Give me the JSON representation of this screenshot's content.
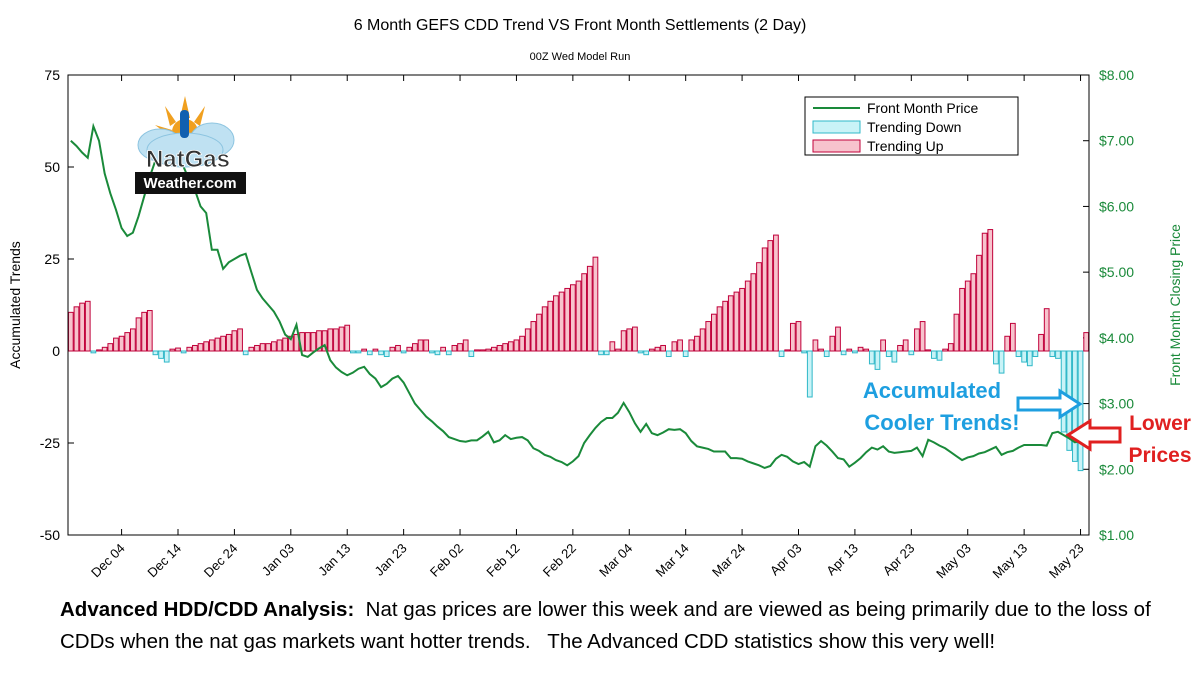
{
  "chart_data": {
    "type": "bar",
    "title": "6 Month GEFS CDD Trend VS Front Month Settlements (2 Day)",
    "subtitle": "00Z Wed Model Run",
    "y_label": "Accumulated Trends",
    "y2_label": "Front Month Closing Price",
    "logo": [
      "NatGas",
      "Weather.com"
    ],
    "annotations": [
      "Accumulated",
      "Cooler Trends!",
      "Lower",
      "Prices"
    ],
    "legend": "upper right",
    "ylim": [
      -50,
      75
    ],
    "yticks": [
      -50,
      -25,
      0,
      25,
      50,
      75
    ],
    "y2lim": [
      1,
      8
    ],
    "y2ticks": [
      {
        "value": 1,
        "label": "$1.00"
      },
      {
        "value": 2,
        "label": "$2.00"
      },
      {
        "value": 3,
        "label": "$3.00"
      },
      {
        "value": 4,
        "label": "$4.00"
      },
      {
        "value": 5,
        "label": "$5.00"
      },
      {
        "value": 6,
        "label": "$6.00"
      },
      {
        "value": 7,
        "label": "$7.00"
      },
      {
        "value": 8,
        "label": "$8.00"
      }
    ],
    "categories": [
      null,
      null,
      null,
      null,
      null,
      null,
      null,
      null,
      null,
      "Dec 04",
      null,
      null,
      null,
      null,
      null,
      null,
      null,
      null,
      null,
      "Dec 14",
      null,
      null,
      null,
      null,
      null,
      null,
      null,
      null,
      null,
      "Dec 24",
      null,
      null,
      null,
      null,
      null,
      null,
      null,
      null,
      null,
      "Jan 03",
      null,
      null,
      null,
      null,
      null,
      null,
      null,
      null,
      null,
      "Jan 13",
      null,
      null,
      null,
      null,
      null,
      null,
      null,
      null,
      null,
      "Jan 23",
      null,
      null,
      null,
      null,
      null,
      null,
      null,
      null,
      null,
      "Feb 02",
      null,
      null,
      null,
      null,
      null,
      null,
      null,
      null,
      null,
      "Feb 12",
      null,
      null,
      null,
      null,
      null,
      null,
      null,
      null,
      null,
      "Feb 22",
      null,
      null,
      null,
      null,
      null,
      null,
      null,
      null,
      null,
      "Mar 04",
      null,
      null,
      null,
      null,
      null,
      null,
      null,
      null,
      null,
      "Mar 14",
      null,
      null,
      null,
      null,
      null,
      null,
      null,
      null,
      null,
      "Mar 24",
      null,
      null,
      null,
      null,
      null,
      null,
      null,
      null,
      null,
      "Apr 03",
      null,
      null,
      null,
      null,
      null,
      null,
      null,
      null,
      null,
      "Apr 13",
      null,
      null,
      null,
      null,
      null,
      null,
      null,
      null,
      null,
      "Apr 23",
      null,
      null,
      null,
      null,
      null,
      null,
      null,
      null,
      null,
      "May 03",
      null,
      null,
      null,
      null,
      null,
      null,
      null,
      null,
      null,
      "May 13",
      null,
      null,
      null,
      null,
      null,
      null,
      null,
      null,
      null,
      "May 23",
      null
    ],
    "series": [
      {
        "name": "Front Month Price",
        "type": "line",
        "axis": "y2",
        "color": "#1a8a3a",
        "values": [
          7.0,
          6.92,
          6.82,
          6.74,
          7.22,
          7.0,
          6.5,
          6.2,
          5.95,
          5.67,
          5.55,
          5.6,
          5.85,
          6.15,
          6.45,
          6.7,
          6.8,
          6.86,
          6.9,
          6.8,
          6.6,
          6.4,
          6.25,
          6.0,
          5.9,
          5.34,
          5.34,
          5.05,
          5.15,
          5.2,
          5.25,
          5.28,
          5.0,
          4.73,
          4.6,
          4.5,
          4.4,
          4.25,
          4.05,
          3.98,
          4.2,
          3.74,
          3.71,
          3.78,
          3.84,
          3.89,
          3.66,
          3.55,
          3.48,
          3.43,
          3.47,
          3.53,
          3.56,
          3.45,
          3.38,
          3.25,
          3.3,
          3.38,
          3.42,
          3.32,
          3.16,
          3.0,
          2.9,
          2.8,
          2.73,
          2.65,
          2.58,
          2.49,
          2.46,
          2.43,
          2.42,
          2.44,
          2.44,
          2.5,
          2.57,
          2.41,
          2.44,
          2.52,
          2.46,
          2.48,
          2.49,
          2.44,
          2.32,
          2.28,
          2.22,
          2.19,
          2.14,
          2.11,
          2.06,
          2.12,
          2.2,
          2.4,
          2.52,
          2.63,
          2.72,
          2.78,
          2.78,
          2.86,
          3.01,
          2.87,
          2.7,
          2.57,
          2.69,
          2.55,
          2.52,
          2.56,
          2.61,
          2.6,
          2.61,
          2.55,
          2.43,
          2.35,
          2.33,
          2.31,
          2.27,
          2.27,
          2.27,
          2.17,
          2.17,
          2.16,
          2.12,
          2.09,
          2.06,
          2.02,
          2.05,
          2.16,
          2.22,
          2.19,
          2.12,
          2.08,
          2.11,
          2.04,
          2.35,
          2.43,
          2.36,
          2.27,
          2.17,
          2.15,
          2.04,
          2.1,
          2.17,
          2.26,
          2.33,
          2.3,
          2.35,
          2.27,
          2.25,
          2.26,
          2.27,
          2.28,
          2.33,
          2.2,
          2.45,
          2.41,
          2.36,
          2.32,
          2.26,
          2.2,
          2.14,
          2.18,
          2.2,
          2.24,
          2.26,
          2.3,
          2.34,
          2.22,
          2.26,
          2.28,
          2.33,
          2.37,
          2.37,
          2.37,
          2.37,
          2.36,
          2.55,
          2.57,
          2.52,
          2.47,
          2.41,
          2.43,
          2.44
        ]
      },
      {
        "name": "Trending Down",
        "type": "bar",
        "color": "#c9f3f7",
        "edge": "#30b8c8",
        "values": [
          null,
          null,
          null,
          null,
          -0.5,
          null,
          null,
          null,
          null,
          null,
          null,
          null,
          null,
          null,
          null,
          -1,
          -2,
          -3,
          null,
          null,
          -0.5,
          null,
          null,
          null,
          null,
          null,
          null,
          null,
          null,
          null,
          null,
          -1,
          null,
          null,
          null,
          null,
          null,
          null,
          null,
          null,
          null,
          null,
          null,
          null,
          null,
          null,
          null,
          null,
          null,
          null,
          -0.5,
          -0.5,
          null,
          -1,
          null,
          -1,
          -1.5,
          null,
          null,
          -0.5,
          null,
          null,
          null,
          null,
          -0.5,
          -1,
          null,
          -1,
          null,
          null,
          null,
          -1.5,
          null,
          null,
          null,
          null,
          null,
          null,
          null,
          null,
          null,
          null,
          null,
          null,
          null,
          null,
          null,
          null,
          null,
          null,
          null,
          null,
          null,
          null,
          -1,
          -1,
          null,
          null,
          null,
          null,
          null,
          -0.5,
          -1,
          null,
          null,
          null,
          -1.5,
          null,
          null,
          -1.5,
          null,
          null,
          null,
          null,
          null,
          null,
          null,
          null,
          null,
          null,
          null,
          null,
          null,
          null,
          null,
          null,
          -1.5,
          null,
          null,
          null,
          -0.5,
          -12.5,
          null,
          null,
          -1.5,
          null,
          null,
          -1,
          null,
          -0.5,
          null,
          null,
          -3.5,
          -5,
          null,
          -1.5,
          -3,
          null,
          null,
          -1,
          null,
          null,
          null,
          -2,
          -2.5,
          null,
          null,
          null,
          null,
          null,
          null,
          null,
          null,
          null,
          -3.5,
          -6,
          null,
          null,
          -1.5,
          -3,
          -4,
          -1.5,
          null,
          null,
          -1.5,
          -2,
          -22,
          -27,
          -30,
          -32.5,
          null
        ]
      },
      {
        "name": "Trending Up",
        "type": "bar",
        "color": "#f7c3cd",
        "edge": "#c0003a",
        "values": [
          10.5,
          12,
          13,
          13.5,
          null,
          0.3,
          1,
          2,
          3.5,
          4,
          5,
          6,
          9,
          10.5,
          11,
          null,
          null,
          null,
          0.5,
          0.8,
          null,
          1,
          1.5,
          2,
          2.5,
          3,
          3.5,
          4,
          4.5,
          5.5,
          6,
          null,
          1,
          1.5,
          2,
          2,
          2.5,
          3,
          3.5,
          4,
          4.5,
          5,
          5,
          5,
          5.5,
          5.5,
          6,
          6,
          6.5,
          7,
          null,
          null,
          0.5,
          null,
          0.5,
          null,
          null,
          1,
          1.5,
          null,
          1,
          2,
          3,
          3,
          null,
          null,
          1,
          null,
          1.5,
          2,
          3,
          null,
          0.3,
          0.3,
          0.5,
          1,
          1.5,
          2,
          2.5,
          3,
          4,
          6,
          8,
          10,
          12,
          13.5,
          15,
          16,
          17,
          18,
          19,
          21,
          23,
          25.5,
          null,
          null,
          2.5,
          0.5,
          5.5,
          6,
          6.5,
          null,
          null,
          0.5,
          1,
          1.5,
          null,
          2.5,
          3,
          null,
          3,
          4,
          6,
          8,
          10,
          12,
          13.5,
          15,
          16,
          17,
          19,
          21,
          24,
          28,
          30,
          31.5,
          null,
          0.3,
          7.5,
          8,
          null,
          null,
          3,
          0.5,
          null,
          4,
          6.5,
          null,
          0.5,
          null,
          1,
          0.5,
          null,
          null,
          3,
          null,
          null,
          1.5,
          3,
          null,
          6,
          8,
          0.3,
          null,
          null,
          0.5,
          2,
          10,
          17,
          19,
          21,
          26,
          32,
          33,
          null,
          null,
          4,
          7.5,
          null,
          null,
          null,
          null,
          4.5,
          11.5,
          null,
          null,
          null,
          null,
          null,
          null,
          5
        ]
      }
    ]
  },
  "caption": {
    "heading": "Advanced HDD/CDD Analysis:",
    "text": "  Nat gas prices are lower this week and are viewed as being primarily due to the loss of CDDs when the nat gas markets want hotter trends.   The Advanced CDD statistics show this very well!"
  }
}
